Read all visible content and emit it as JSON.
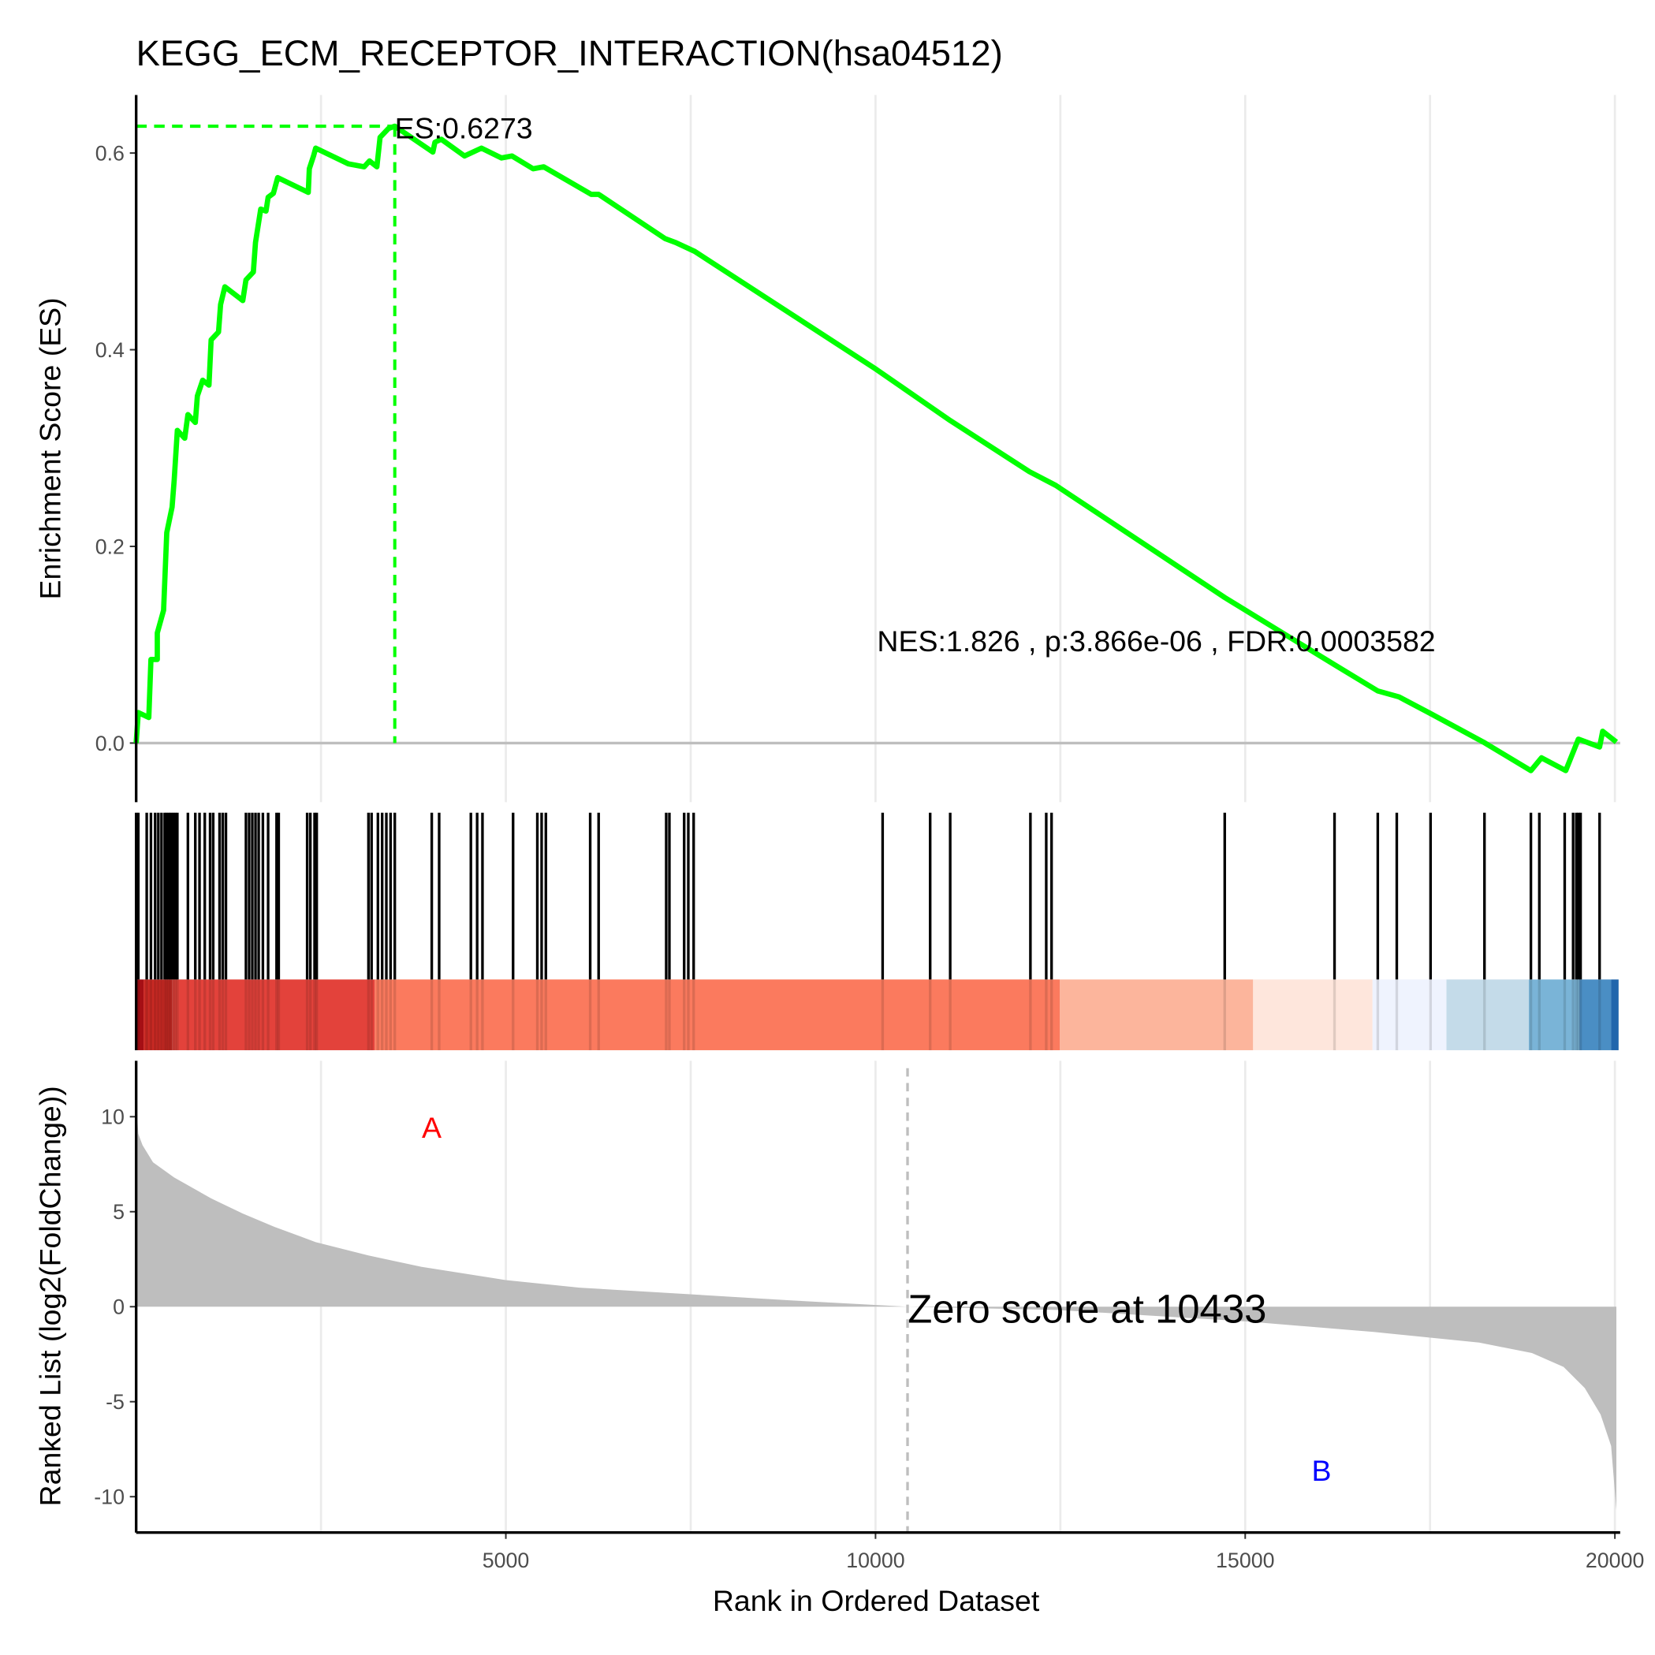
{
  "chart_data": {
    "type": "line",
    "title": "KEGG_ECM_RECEPTOR_INTERACTION(hsa04512)",
    "xlabel": "Rank in Ordered Dataset",
    "xlim": [
      0,
      20050
    ],
    "xticks": [
      5000,
      10000,
      15000,
      20000
    ],
    "es_panel": {
      "ylabel": "Enrichment Score (ES)",
      "ylim": [
        -0.06,
        0.66
      ],
      "yticks": [
        "0.0",
        "0.2",
        "0.4",
        "0.6"
      ],
      "line_color": "#00ff00",
      "es_max": 0.6273,
      "es_max_rank": 3498,
      "es_label": "ES:0.6273",
      "stats_label": "NES:1.826 , p:3.866e-06 , FDR:0.0003582",
      "curve": [
        [
          0,
          0
        ],
        [
          29,
          0.031
        ],
        [
          171,
          0.026
        ],
        [
          200,
          0.085
        ],
        [
          286,
          0.085
        ],
        [
          286,
          0.112
        ],
        [
          371,
          0.135
        ],
        [
          414,
          0.214
        ],
        [
          486,
          0.24
        ],
        [
          514,
          0.267
        ],
        [
          557,
          0.318
        ],
        [
          657,
          0.31
        ],
        [
          700,
          0.334
        ],
        [
          800,
          0.326
        ],
        [
          828,
          0.353
        ],
        [
          900,
          0.369
        ],
        [
          985,
          0.364
        ],
        [
          1014,
          0.41
        ],
        [
          1114,
          0.418
        ],
        [
          1142,
          0.446
        ],
        [
          1200,
          0.464
        ],
        [
          1442,
          0.45
        ],
        [
          1485,
          0.471
        ],
        [
          1585,
          0.479
        ],
        [
          1614,
          0.509
        ],
        [
          1685,
          0.543
        ],
        [
          1756,
          0.541
        ],
        [
          1785,
          0.555
        ],
        [
          1856,
          0.559
        ],
        [
          1914,
          0.575
        ],
        [
          2328,
          0.56
        ],
        [
          2342,
          0.584
        ],
        [
          2399,
          0.597
        ],
        [
          2428,
          0.605
        ],
        [
          2870,
          0.589
        ],
        [
          3084,
          0.586
        ],
        [
          3156,
          0.592
        ],
        [
          3256,
          0.586
        ],
        [
          3299,
          0.616
        ],
        [
          3413,
          0.625
        ],
        [
          3498,
          0.6273
        ],
        [
          4013,
          0.601
        ],
        [
          4041,
          0.611
        ],
        [
          4127,
          0.614
        ],
        [
          4441,
          0.597
        ],
        [
          4670,
          0.605
        ],
        [
          4941,
          0.595
        ],
        [
          5084,
          0.597
        ],
        [
          5369,
          0.584
        ],
        [
          5512,
          0.586
        ],
        [
          6155,
          0.558
        ],
        [
          6255,
          0.558
        ],
        [
          7154,
          0.513
        ],
        [
          7297,
          0.509
        ],
        [
          7554,
          0.5
        ],
        [
          10010,
          0.38
        ],
        [
          11010,
          0.328
        ],
        [
          12081,
          0.276
        ],
        [
          12438,
          0.262
        ],
        [
          14723,
          0.148
        ],
        [
          16222,
          0.079
        ],
        [
          16793,
          0.053
        ],
        [
          17079,
          0.047
        ],
        [
          17507,
          0.03
        ],
        [
          18221,
          0.001
        ],
        [
          18864,
          -0.028
        ],
        [
          19007,
          -0.015
        ],
        [
          19335,
          -0.028
        ],
        [
          19506,
          0.004
        ],
        [
          19793,
          -0.004
        ],
        [
          19835,
          0.012
        ],
        [
          20020,
          0.001
        ]
      ]
    },
    "hits": [
      29,
      143,
      200,
      257,
      300,
      343,
      386,
      414,
      443,
      471,
      500,
      528,
      557,
      700,
      800,
      857,
      928,
      1000,
      1042,
      1128,
      1171,
      1214,
      1485,
      1528,
      1571,
      1614,
      1657,
      1714,
      1785,
      1899,
      1928,
      2313,
      2356,
      2413,
      2442,
      3142,
      3184,
      3270,
      3327,
      3384,
      3441,
      3498,
      3998,
      4098,
      4527,
      4612,
      4684,
      5098,
      5426,
      5484,
      5541,
      6141,
      6255,
      7169,
      7212,
      7412,
      7468,
      7540,
      10096,
      10739,
      11010,
      12095,
      12309,
      12381,
      14723,
      16208,
      16793,
      17050,
      17507,
      18236,
      18864,
      18978,
      19321,
      19435,
      19478,
      19507,
      19536,
      19793
    ],
    "color_bar": [
      {
        "from": 0,
        "to": 100,
        "color": "#a50f15"
      },
      {
        "from": 100,
        "to": 485,
        "color": "#cb2a24"
      },
      {
        "from": 485,
        "to": 3227,
        "color": "#e3423b"
      },
      {
        "from": 3227,
        "to": 12494,
        "color": "#fb7a5e"
      },
      {
        "from": 12494,
        "to": 15107,
        "color": "#fcb59c"
      },
      {
        "from": 15107,
        "to": 16722,
        "color": "#fee6dc"
      },
      {
        "from": 16722,
        "to": 17722,
        "color": "#eff3fe"
      },
      {
        "from": 17722,
        "to": 18835,
        "color": "#c4dbe9"
      },
      {
        "from": 18835,
        "to": 19521,
        "color": "#7ab4d7"
      },
      {
        "from": 19521,
        "to": 19950,
        "color": "#4a8ec4"
      },
      {
        "from": 19950,
        "to": 20050,
        "color": "#2166ac"
      }
    ],
    "ranked_panel": {
      "ylabel": "Ranked List (log2(FoldChange))",
      "ylim": [
        -11.7,
        13
      ],
      "yticks": [
        "-10",
        "-5",
        "0",
        "5",
        "10"
      ],
      "fill_color": "#bebebe",
      "zero_rank": 10433,
      "zero_label": "Zero score at 10433",
      "label_a": "A",
      "label_b": "B",
      "label_a_color": "#ff0000",
      "label_b_color": "#0000ff",
      "curve": [
        [
          0,
          10.8
        ],
        [
          29,
          9.1
        ],
        [
          86,
          8.5
        ],
        [
          228,
          7.6
        ],
        [
          514,
          6.8
        ],
        [
          1014,
          5.7
        ],
        [
          1442,
          4.9
        ],
        [
          1870,
          4.2
        ],
        [
          2428,
          3.4
        ],
        [
          3141,
          2.7
        ],
        [
          3855,
          2.1
        ],
        [
          4998,
          1.4
        ],
        [
          5997,
          1.0
        ],
        [
          7425,
          0.67
        ],
        [
          8853,
          0.33
        ],
        [
          10433,
          0
        ],
        [
          12452,
          -0.17
        ],
        [
          15022,
          -0.78
        ],
        [
          16736,
          -1.33
        ],
        [
          18164,
          -1.89
        ],
        [
          18878,
          -2.44
        ],
        [
          19306,
          -3.17
        ],
        [
          19592,
          -4.28
        ],
        [
          19806,
          -5.67
        ],
        [
          19949,
          -7.33
        ],
        [
          20020,
          -10.7
        ]
      ]
    }
  }
}
